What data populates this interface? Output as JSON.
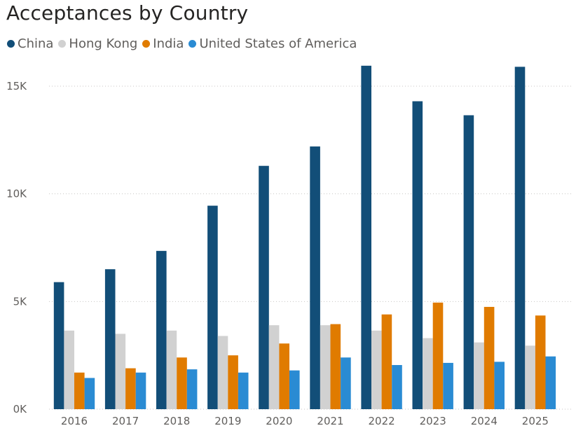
{
  "chart_data": {
    "type": "bar",
    "title": "Acceptances by Country",
    "xlabel": "",
    "ylabel": "",
    "categories": [
      "2016",
      "2017",
      "2018",
      "2019",
      "2020",
      "2021",
      "2022",
      "2023",
      "2024",
      "2025"
    ],
    "series": [
      {
        "name": "China",
        "color": "#124E78",
        "values": [
          5900,
          6500,
          7350,
          9450,
          11300,
          12200,
          15950,
          14300,
          13650,
          15900
        ]
      },
      {
        "name": "Hong Kong",
        "color": "#D1D1D1",
        "values": [
          3650,
          3500,
          3650,
          3400,
          3900,
          3900,
          3650,
          3300,
          3100,
          2950
        ]
      },
      {
        "name": "India",
        "color": "#E07B00",
        "values": [
          1700,
          1900,
          2400,
          2500,
          3050,
          3950,
          4400,
          4950,
          4750,
          4350
        ]
      },
      {
        "name": "United States of America",
        "color": "#2A8BD3",
        "values": [
          1450,
          1700,
          1850,
          1700,
          1800,
          2400,
          2050,
          2150,
          2200,
          2450
        ]
      }
    ],
    "ylim": [
      0,
      16000
    ],
    "yticks": [
      0,
      5000,
      10000,
      15000
    ],
    "ytick_labels": [
      "0K",
      "5K",
      "10K",
      "15K"
    ],
    "grid": true,
    "legend_position": "top-left"
  }
}
